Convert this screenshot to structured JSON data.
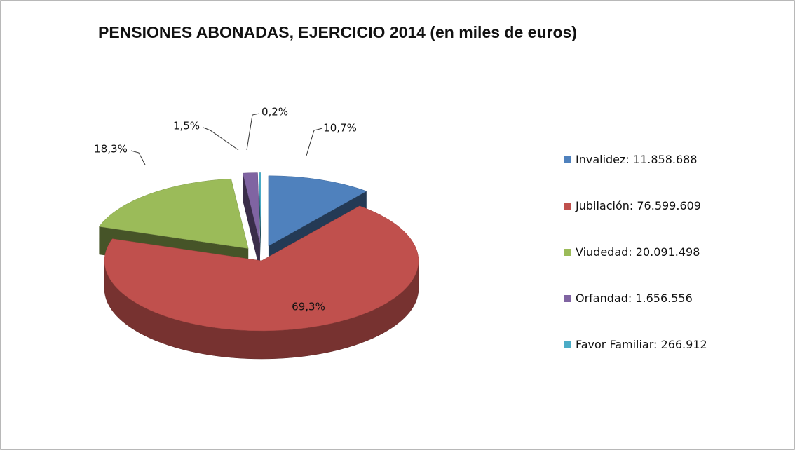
{
  "chart_data": {
    "type": "pie",
    "title": "PENSIONES ABONADAS, EJERCICIO 2014 (en miles de euros)",
    "categories": [
      "Invalidez",
      "Jubilación",
      "Viudedad",
      "Orfandad",
      "Favor Familiar"
    ],
    "label_separator": ": ",
    "values": [
      11858688,
      76599609,
      20091498,
      1656556,
      266912
    ],
    "value_labels": [
      "11.858.688",
      "76.599.609",
      "20.091.498",
      "1.656.556",
      "266.912"
    ],
    "percent_values": [
      10.7,
      69.3,
      18.3,
      1.5,
      0.2
    ],
    "percent_labels": [
      "10,7%",
      "69,3%",
      "18,3%",
      "1,5%",
      "0,2%"
    ],
    "colors": [
      "#4f81bd",
      "#c0504d",
      "#9bbb59",
      "#8064a2",
      "#4bacc6"
    ],
    "legend": "right"
  }
}
